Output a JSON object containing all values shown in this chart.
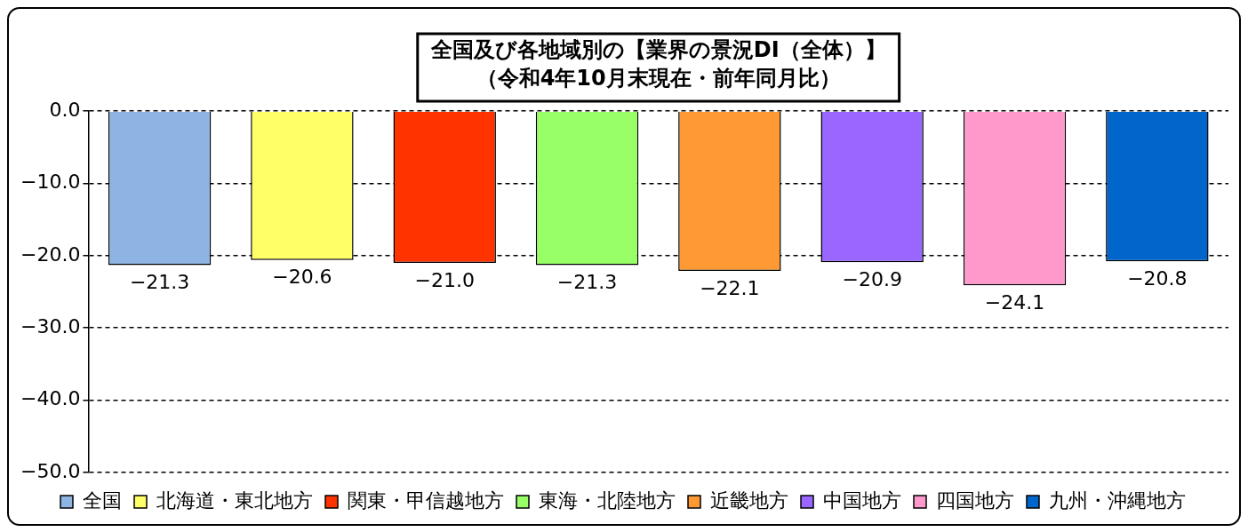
{
  "chart_data": {
    "type": "bar",
    "title": "全国及び各地域別の【業界の景況DI（全体）】",
    "subtitle": "（令和4年10月末現在・前年同月比）",
    "categories": [
      null
    ],
    "series": [
      {
        "name": "全国",
        "color": "#8eb4e3",
        "values": [
          -21.3
        ],
        "value_labels": [
          "−21.3"
        ]
      },
      {
        "name": "北海道・東北地方",
        "color": "#ffff66",
        "values": [
          -20.6
        ],
        "value_labels": [
          "−20.6"
        ]
      },
      {
        "name": "関東・甲信越地方",
        "color": "#ff3300",
        "values": [
          -21.0
        ],
        "value_labels": [
          "−21.0"
        ]
      },
      {
        "name": "東海・北陸地方",
        "color": "#99ff66",
        "values": [
          -21.3
        ],
        "value_labels": [
          "−21.3"
        ]
      },
      {
        "name": "近畿地方",
        "color": "#ff9933",
        "values": [
          -22.1
        ],
        "value_labels": [
          "−22.1"
        ]
      },
      {
        "name": "中国地方",
        "color": "#9966ff",
        "values": [
          -20.9
        ],
        "value_labels": [
          "−20.9"
        ]
      },
      {
        "name": "四国地方",
        "color": "#ff99cc",
        "values": [
          -24.1
        ],
        "value_labels": [
          "−24.1"
        ]
      },
      {
        "name": "九州・沖縄地方",
        "color": "#0066cc",
        "values": [
          -20.8
        ],
        "value_labels": [
          "−20.8"
        ]
      }
    ],
    "ylim": [
      -50,
      0
    ],
    "yticks": [
      {
        "value": 0,
        "label": "0.0"
      },
      {
        "value": -10,
        "label": "−10.0"
      },
      {
        "value": -20,
        "label": "−20.0"
      },
      {
        "value": -30,
        "label": "−30.0"
      },
      {
        "value": -40,
        "label": "−40.0"
      },
      {
        "value": -50,
        "label": "−50.0"
      }
    ],
    "grid": "y",
    "legend": "bottom"
  }
}
